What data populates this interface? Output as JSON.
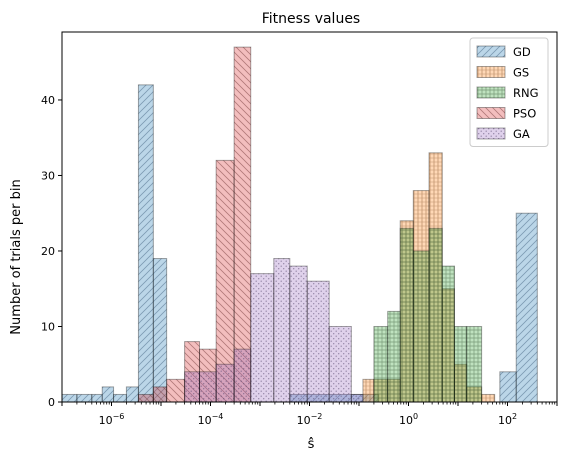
{
  "chart_data": {
    "type": "bar",
    "subtype": "histogram",
    "title": "Fitness values",
    "xlabel": "ŝ̂",
    "ylabel": "Number of trials per bin",
    "xscale": "log",
    "xlim": [
      1e-07,
      1000
    ],
    "ylim": [
      0,
      49
    ],
    "yticks": [
      0,
      10,
      20,
      30,
      40
    ],
    "xticks": [
      {
        "value": 1e-06,
        "base": "10",
        "exp": "−6"
      },
      {
        "value": 0.0001,
        "base": "10",
        "exp": "−4"
      },
      {
        "value": 0.01,
        "base": "10",
        "exp": "−2"
      },
      {
        "value": 1,
        "base": "10",
        "exp": "0"
      },
      {
        "value": 100,
        "base": "10",
        "exp": "2"
      }
    ],
    "legend_position": "top-right",
    "grid": false,
    "series": [
      {
        "name": "GD",
        "color": "#1f77b4",
        "hatch": "diagonal-right",
        "bins": [
          {
            "x0": 1e-07,
            "x1": 2e-07,
            "count": 1
          },
          {
            "x0": 2e-07,
            "x1": 4e-07,
            "count": 1
          },
          {
            "x0": 4e-07,
            "x1": 6.5e-07,
            "count": 1
          },
          {
            "x0": 6.5e-07,
            "x1": 1.1e-06,
            "count": 2
          },
          {
            "x0": 1.1e-06,
            "x1": 2e-06,
            "count": 1
          },
          {
            "x0": 2e-06,
            "x1": 3.5e-06,
            "count": 2
          },
          {
            "x0": 3.5e-06,
            "x1": 7e-06,
            "count": 42
          },
          {
            "x0": 7e-06,
            "x1": 1.3e-05,
            "count": 19
          },
          {
            "x0": 1.3e-05,
            "x1": 0.0007,
            "count": 0
          },
          {
            "x0": 0.004,
            "x1": 0.25,
            "count": 1
          },
          {
            "x0": 0.25,
            "x1": 20,
            "count": 0
          },
          {
            "x0": 20,
            "x1": 70,
            "count": 0
          },
          {
            "x0": 70,
            "x1": 150,
            "count": 4
          },
          {
            "x0": 150,
            "x1": 400,
            "count": 25
          },
          {
            "x0": 400,
            "x1": 800,
            "count": 0
          }
        ]
      },
      {
        "name": "GS",
        "color": "#ff7f0e",
        "hatch": "vertical-lines",
        "bins": [
          {
            "x0": 0.12,
            "x1": 0.2,
            "count": 3
          },
          {
            "x0": 0.2,
            "x1": 0.38,
            "count": 3
          },
          {
            "x0": 0.38,
            "x1": 0.68,
            "count": 3
          },
          {
            "x0": 0.68,
            "x1": 1.25,
            "count": 24
          },
          {
            "x0": 1.25,
            "x1": 2.6,
            "count": 28
          },
          {
            "x0": 2.6,
            "x1": 4.8,
            "count": 33
          },
          {
            "x0": 4.8,
            "x1": 8.5,
            "count": 15
          },
          {
            "x0": 8.5,
            "x1": 15,
            "count": 5
          },
          {
            "x0": 15,
            "x1": 30,
            "count": 2
          },
          {
            "x0": 30,
            "x1": 55,
            "count": 1
          }
        ]
      },
      {
        "name": "RNG",
        "color": "#2ca02c",
        "hatch": "grid",
        "bins": [
          {
            "x0": 0.2,
            "x1": 0.38,
            "count": 10
          },
          {
            "x0": 0.38,
            "x1": 0.68,
            "count": 12
          },
          {
            "x0": 0.68,
            "x1": 1.25,
            "count": 23
          },
          {
            "x0": 1.25,
            "x1": 2.6,
            "count": 20
          },
          {
            "x0": 2.6,
            "x1": 4.8,
            "count": 23
          },
          {
            "x0": 4.8,
            "x1": 8.5,
            "count": 18
          },
          {
            "x0": 8.5,
            "x1": 15,
            "count": 10
          },
          {
            "x0": 15,
            "x1": 30,
            "count": 10
          }
        ]
      },
      {
        "name": "PSO",
        "color": "#d62728",
        "hatch": "diagonal-left",
        "bins": [
          {
            "x0": 3.5e-06,
            "x1": 7e-06,
            "count": 1
          },
          {
            "x0": 7e-06,
            "x1": 1.3e-05,
            "count": 2
          },
          {
            "x0": 1.3e-05,
            "x1": 3e-05,
            "count": 3
          },
          {
            "x0": 3e-05,
            "x1": 6e-05,
            "count": 8
          },
          {
            "x0": 6e-05,
            "x1": 0.00013,
            "count": 7
          },
          {
            "x0": 0.00013,
            "x1": 0.0003,
            "count": 32
          },
          {
            "x0": 0.0003,
            "x1": 0.00065,
            "count": 47
          }
        ]
      },
      {
        "name": "GA",
        "color": "#9467bd",
        "hatch": "dots",
        "bins": [
          {
            "x0": 3e-05,
            "x1": 6e-05,
            "count": 4
          },
          {
            "x0": 6e-05,
            "x1": 0.00013,
            "count": 4
          },
          {
            "x0": 0.00013,
            "x1": 0.0003,
            "count": 5
          },
          {
            "x0": 0.0003,
            "x1": 0.00065,
            "count": 7
          },
          {
            "x0": 0.00065,
            "x1": 0.0019,
            "count": 17
          },
          {
            "x0": 0.0019,
            "x1": 0.004,
            "count": 19
          },
          {
            "x0": 0.004,
            "x1": 0.009,
            "count": 18
          },
          {
            "x0": 0.009,
            "x1": 0.025,
            "count": 16
          },
          {
            "x0": 0.025,
            "x1": 0.07,
            "count": 10
          },
          {
            "x0": 0.07,
            "x1": 0.12,
            "count": 1
          }
        ]
      }
    ]
  }
}
